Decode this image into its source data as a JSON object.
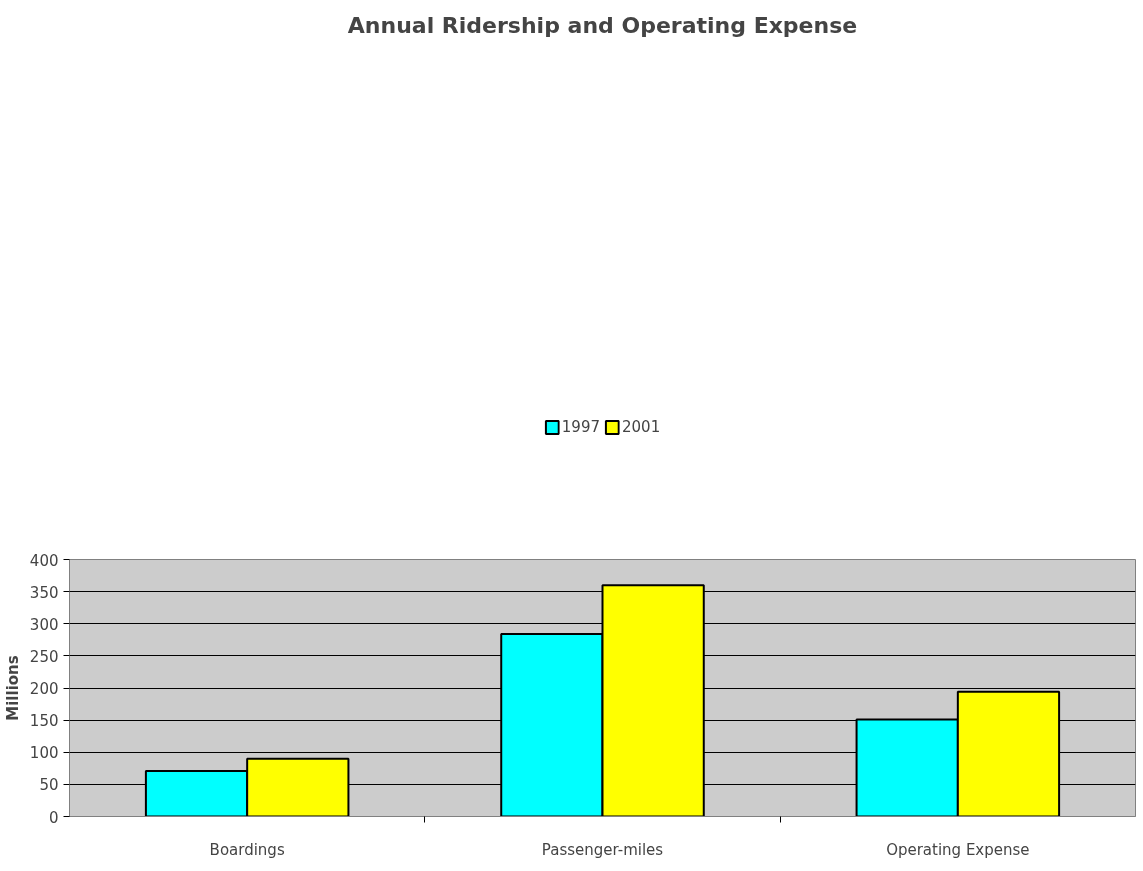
{
  "chart_data": {
    "type": "bar",
    "title": "Annual Ridership and Operating Expense",
    "ylabel": "Millions",
    "categories": [
      "Boardings",
      "Passenger-miles",
      "Operating Expense"
    ],
    "series": [
      {
        "name": "1997",
        "color": "#00ffff",
        "values": [
          71,
          284,
          151
        ]
      },
      {
        "name": "2001",
        "color": "#ffff00",
        "values": [
          90,
          360,
          194
        ]
      }
    ],
    "ylim": [
      0,
      400
    ],
    "yticks": [
      0,
      50,
      100,
      150,
      200,
      250,
      300,
      350,
      400
    ],
    "grid": "y",
    "legend": "top"
  }
}
